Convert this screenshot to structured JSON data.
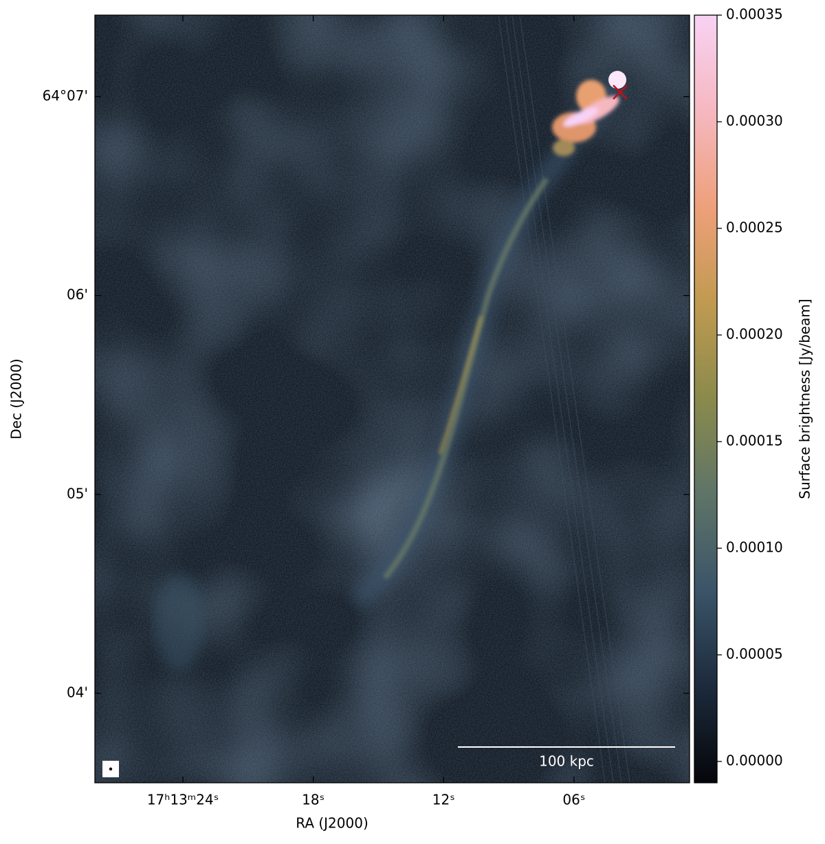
{
  "chart_data": {
    "type": "image",
    "xlabel": "RA (J2000)",
    "ylabel": "Dec (J2000)",
    "xlim": [
      28.05,
      0.68
    ],
    "xticks": [
      {
        "value": 24,
        "label": "17ʰ13ᵐ24ˢ"
      },
      {
        "value": 18,
        "label": "18ˢ"
      },
      {
        "value": 12,
        "label": "12ˢ"
      },
      {
        "value": 6,
        "label": "06ˢ"
      }
    ],
    "ylim": [
      3.55,
      7.41
    ],
    "yticks": [
      {
        "value": 4,
        "label": "04'"
      },
      {
        "value": 5,
        "label": "05'"
      },
      {
        "value": 6,
        "label": "06'"
      },
      {
        "value": 7,
        "label": "64°07'"
      }
    ],
    "colorbar": {
      "label": "Surface brightness [Jy/beam]",
      "clim": [
        -1e-05,
        0.00035
      ],
      "cticks": [
        {
          "value": 0,
          "label": "0.00000"
        },
        {
          "value": 5e-05,
          "label": "0.00005"
        },
        {
          "value": 0.0001,
          "label": "0.00010"
        },
        {
          "value": 0.00015,
          "label": "0.00015"
        },
        {
          "value": 0.0002,
          "label": "0.00020"
        },
        {
          "value": 0.00025,
          "label": "0.00025"
        },
        {
          "value": 0.0003,
          "label": "0.00030"
        },
        {
          "value": 0.00035,
          "label": "0.00035"
        }
      ],
      "colormap": [
        "#05060a",
        "#1c2a3c",
        "#3a5468",
        "#5e7468",
        "#8a8a4c",
        "#c09a50",
        "#eea07a",
        "#f6b8c0",
        "#f8d2f4"
      ]
    },
    "scale_bar": "100 kpc"
  }
}
